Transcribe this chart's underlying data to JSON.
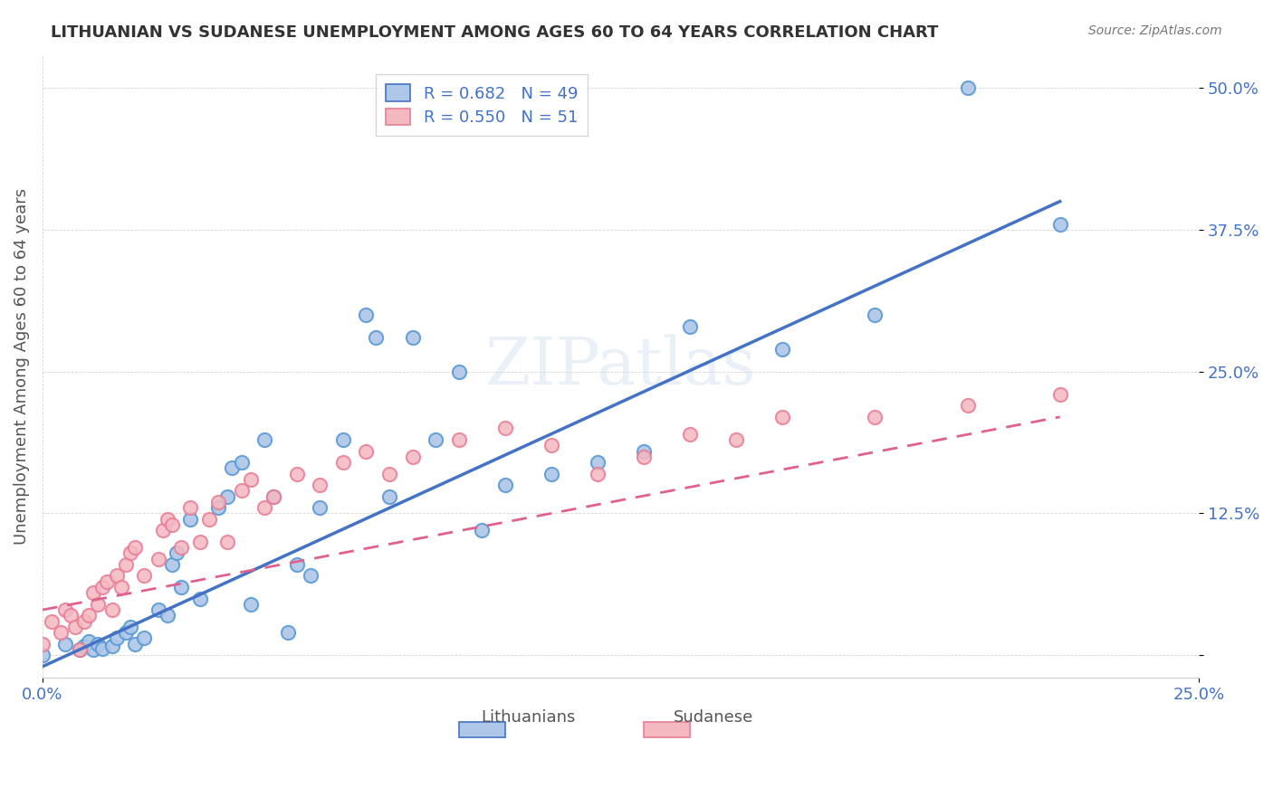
{
  "title": "LITHUANIAN VS SUDANESE UNEMPLOYMENT AMONG AGES 60 TO 64 YEARS CORRELATION CHART",
  "source": "Source: ZipAtlas.com",
  "xlabel_ticks": [
    "0.0%",
    "25.0%"
  ],
  "ylabel_label": "Unemployment Among Ages 60 to 64 years",
  "ytick_labels": [
    "",
    "12.5%",
    "25.0%",
    "37.5%",
    "50.0%"
  ],
  "ytick_values": [
    0.0,
    0.125,
    0.25,
    0.375,
    0.5
  ],
  "xlim": [
    0.0,
    0.25
  ],
  "ylim": [
    -0.02,
    0.53
  ],
  "legend_entries": [
    {
      "label": "R = 0.682   N = 49",
      "color": "#aec6e8"
    },
    {
      "label": "R = 0.550   N = 51",
      "color": "#f4b8c1"
    }
  ],
  "watermark": "ZIPatlas",
  "blue_color": "#5b9bd5",
  "pink_color": "#f4b8c1",
  "pink_dark": "#e87d96",
  "blue_scatter_color": "#aec6e8",
  "pink_scatter_color": "#f4b8c1",
  "blue_line_color": "#4472c4",
  "pink_line_dashed_color": "#e06090",
  "lithuanians_x": [
    0.0,
    0.005,
    0.008,
    0.009,
    0.01,
    0.011,
    0.012,
    0.013,
    0.015,
    0.016,
    0.018,
    0.019,
    0.02,
    0.022,
    0.025,
    0.027,
    0.028,
    0.029,
    0.03,
    0.032,
    0.034,
    0.038,
    0.04,
    0.041,
    0.043,
    0.045,
    0.048,
    0.05,
    0.053,
    0.055,
    0.058,
    0.06,
    0.065,
    0.07,
    0.072,
    0.075,
    0.08,
    0.085,
    0.09,
    0.095,
    0.1,
    0.11,
    0.12,
    0.13,
    0.14,
    0.16,
    0.18,
    0.2,
    0.22
  ],
  "lithuanians_y": [
    0.0,
    0.01,
    0.005,
    0.008,
    0.012,
    0.005,
    0.01,
    0.006,
    0.008,
    0.015,
    0.02,
    0.025,
    0.01,
    0.015,
    0.04,
    0.035,
    0.08,
    0.09,
    0.06,
    0.12,
    0.05,
    0.13,
    0.14,
    0.165,
    0.17,
    0.045,
    0.19,
    0.14,
    0.02,
    0.08,
    0.07,
    0.13,
    0.19,
    0.3,
    0.28,
    0.14,
    0.28,
    0.19,
    0.25,
    0.11,
    0.15,
    0.16,
    0.17,
    0.18,
    0.29,
    0.27,
    0.3,
    0.5,
    0.38
  ],
  "sudanese_x": [
    0.0,
    0.002,
    0.004,
    0.005,
    0.006,
    0.007,
    0.008,
    0.009,
    0.01,
    0.011,
    0.012,
    0.013,
    0.014,
    0.015,
    0.016,
    0.017,
    0.018,
    0.019,
    0.02,
    0.022,
    0.025,
    0.026,
    0.027,
    0.028,
    0.03,
    0.032,
    0.034,
    0.036,
    0.038,
    0.04,
    0.043,
    0.045,
    0.048,
    0.05,
    0.055,
    0.06,
    0.065,
    0.07,
    0.075,
    0.08,
    0.09,
    0.1,
    0.11,
    0.12,
    0.13,
    0.14,
    0.15,
    0.16,
    0.18,
    0.2,
    0.22
  ],
  "sudanese_y": [
    0.01,
    0.03,
    0.02,
    0.04,
    0.035,
    0.025,
    0.005,
    0.03,
    0.035,
    0.055,
    0.045,
    0.06,
    0.065,
    0.04,
    0.07,
    0.06,
    0.08,
    0.09,
    0.095,
    0.07,
    0.085,
    0.11,
    0.12,
    0.115,
    0.095,
    0.13,
    0.1,
    0.12,
    0.135,
    0.1,
    0.145,
    0.155,
    0.13,
    0.14,
    0.16,
    0.15,
    0.17,
    0.18,
    0.16,
    0.175,
    0.19,
    0.2,
    0.185,
    0.16,
    0.175,
    0.195,
    0.19,
    0.21,
    0.21,
    0.22,
    0.23
  ],
  "blue_trend_x": [
    0.0,
    0.22
  ],
  "blue_trend_y": [
    -0.01,
    0.4
  ],
  "pink_trend_x": [
    0.0,
    0.22
  ],
  "pink_trend_y": [
    0.04,
    0.21
  ]
}
